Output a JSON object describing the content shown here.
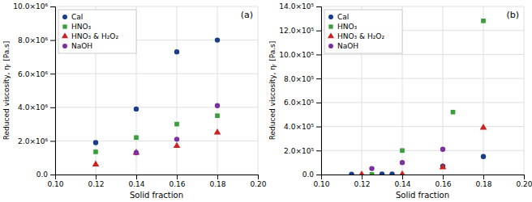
{
  "chart_data": [
    {
      "type": "scatter",
      "xlabel": "Solid fraction",
      "ylabel": "Reduced viscosity, ηᵣ [Pa.s]",
      "annotations": [
        "(a)"
      ],
      "xlim": [
        0.1,
        0.2
      ],
      "xticks": [
        {
          "value": 0.1,
          "label": "0.10"
        },
        0.12,
        0.14,
        0.16,
        0.18,
        {
          "value": 0.2,
          "label": "0.20"
        }
      ],
      "ylim": [
        0,
        10000000.0
      ],
      "yticks": [
        {
          "value": 0,
          "label": "0.0"
        },
        {
          "value": 2000000.0,
          "label": "2.0×10⁶"
        },
        {
          "value": 4000000.0,
          "label": "4.0×10⁶"
        },
        {
          "value": 6000000.0,
          "label": "6.0×10⁶"
        },
        {
          "value": 8000000.0,
          "label": "8.0×10⁶"
        },
        {
          "value": 10000000.0,
          "label": "10.0×10⁶"
        }
      ],
      "grid": true,
      "legend": "top-left",
      "series": [
        {
          "name": "Cal",
          "color": "#1a3c8f",
          "marker": "circle",
          "x": [
            0.12,
            0.14,
            0.16,
            0.18
          ],
          "values": [
            1900000.0,
            3900000.0,
            7300000.0,
            8000000.0
          ]
        },
        {
          "name": "HNO₃",
          "color": "#3a9e3a",
          "marker": "square",
          "x": [
            0.12,
            0.14,
            0.16,
            0.18
          ],
          "values": [
            1350000.0,
            2200000.0,
            3000000.0,
            3500000.0
          ]
        },
        {
          "name": "HNO₃ & H₂O₂",
          "color": "#cc2222",
          "marker": "triangle",
          "x": [
            0.12,
            0.14,
            0.16,
            0.18
          ],
          "values": [
            600000.0,
            1300000.0,
            1700000.0,
            2500000.0
          ]
        },
        {
          "name": "NaOH",
          "color": "#7b2fa0",
          "marker": "circle",
          "x": [
            0.14,
            0.16,
            0.18
          ],
          "values": [
            1300000.0,
            2100000.0,
            4100000.0
          ]
        }
      ]
    },
    {
      "type": "scatter",
      "xlabel": "Solid fraction",
      "ylabel": "Reduced viscosity, ηᵣ [Pa.s]",
      "annotations": [
        "(b)"
      ],
      "xlim": [
        0.1,
        0.2
      ],
      "xticks": [
        {
          "value": 0.1,
          "label": "0.10"
        },
        0.12,
        0.14,
        0.16,
        0.18,
        {
          "value": 0.2,
          "label": "0.20"
        }
      ],
      "ylim": [
        0,
        1400000.0
      ],
      "yticks": [
        {
          "value": 0,
          "label": "0.0"
        },
        {
          "value": 200000.0,
          "label": "2.0×10⁵"
        },
        {
          "value": 400000.0,
          "label": "4.0×10⁵"
        },
        {
          "value": 600000.0,
          "label": "6.0×10⁵"
        },
        {
          "value": 800000.0,
          "label": "8.0×10⁵"
        },
        {
          "value": 1000000.0,
          "label": "10.0×10⁵"
        },
        {
          "value": 1200000.0,
          "label": "12.0×10⁵"
        },
        {
          "value": 1400000.0,
          "label": "14.0×10⁵"
        }
      ],
      "grid": true,
      "legend": "top-left",
      "series": [
        {
          "name": "Cal",
          "color": "#1a3c8f",
          "marker": "circle",
          "x": [
            0.115,
            0.13,
            0.135,
            0.16,
            0.18
          ],
          "values": [
            2000.0,
            4500.0,
            4000.0,
            70000.0,
            150000.0
          ]
        },
        {
          "name": "HNO₃",
          "color": "#3a9e3a",
          "marker": "square",
          "x": [
            0.125,
            0.14,
            0.165,
            0.18
          ],
          "values": [
            1000.0,
            200000.0,
            520000.0,
            1280000.0
          ]
        },
        {
          "name": "HNO₃ & H₂O₂",
          "color": "#cc2222",
          "marker": "triangle",
          "x": [
            0.12,
            0.14,
            0.16,
            0.18
          ],
          "values": [
            500.0,
            2000.0,
            60000.0,
            390000.0
          ]
        },
        {
          "name": "NaOH",
          "color": "#7b2fa0",
          "marker": "circle",
          "x": [
            0.125,
            0.14,
            0.16
          ],
          "values": [
            50000.0,
            100000.0,
            210000.0
          ]
        }
      ]
    }
  ]
}
